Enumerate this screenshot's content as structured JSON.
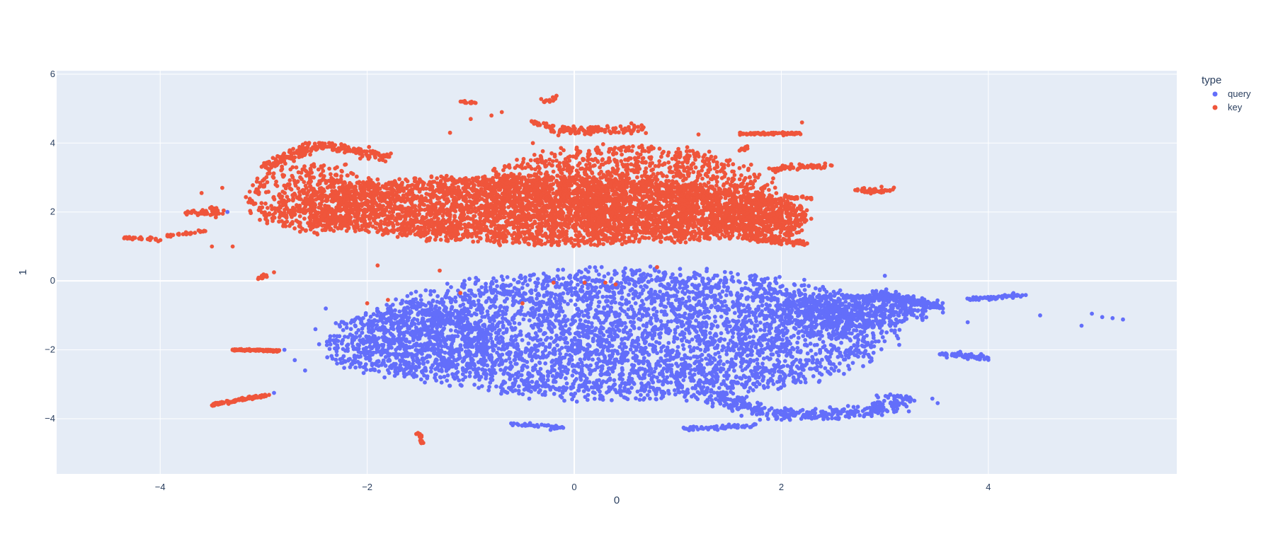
{
  "chart_data": {
    "type": "scatter",
    "title": "",
    "xlabel": "0",
    "ylabel": "1",
    "xlim": [
      -5.0,
      5.82
    ],
    "ylim": [
      -5.6,
      6.1
    ],
    "x_ticks": [
      -4,
      -2,
      0,
      2,
      4
    ],
    "x_tick_labels": [
      "−4",
      "−2",
      "0",
      "2",
      "4"
    ],
    "y_ticks": [
      -4,
      -2,
      0,
      2,
      4,
      6
    ],
    "y_tick_labels": [
      "−4",
      "−2",
      "0",
      "2",
      "4",
      "6"
    ],
    "grid": true,
    "legend": {
      "title": "type",
      "placement": "top-right",
      "entries": [
        "query",
        "key"
      ]
    },
    "series": [
      {
        "name": "query",
        "color": "#636efa",
        "clusters": [
          {
            "kind": "blob",
            "cx": 0.5,
            "cy": -1.55,
            "rx": 2.75,
            "ry": 2.0,
            "n": 4200,
            "tilt": 0.02
          },
          {
            "kind": "blob",
            "cx": -1.6,
            "cy": -1.8,
            "rx": 0.9,
            "ry": 1.1,
            "n": 600,
            "tilt": 0.0
          },
          {
            "kind": "blob",
            "cx": 2.7,
            "cy": -0.9,
            "rx": 0.8,
            "ry": 0.55,
            "n": 500,
            "tilt": 0.0
          },
          {
            "kind": "arc",
            "cx": 2.3,
            "cy": -3.2,
            "rx": 0.9,
            "ry": 0.7,
            "n": 380
          },
          {
            "kind": "line",
            "x0": 2.9,
            "y0": -0.35,
            "x1": 3.55,
            "y1": -0.75,
            "n": 160,
            "spread": 0.06
          },
          {
            "kind": "line",
            "x0": 3.8,
            "y0": -0.55,
            "x1": 4.35,
            "y1": -0.4,
            "n": 60,
            "spread": 0.03
          },
          {
            "kind": "line",
            "x0": 3.55,
            "y0": -2.1,
            "x1": 4.0,
            "y1": -2.25,
            "n": 60,
            "spread": 0.04
          },
          {
            "kind": "line",
            "x0": 1.05,
            "y0": -4.3,
            "x1": 1.75,
            "y1": -4.2,
            "n": 60,
            "spread": 0.03
          },
          {
            "kind": "line",
            "x0": -0.6,
            "y0": -4.15,
            "x1": -0.1,
            "y1": -4.28,
            "n": 40,
            "spread": 0.03
          },
          {
            "kind": "points",
            "pts": [
              [
                5.0,
                -0.95
              ],
              [
                5.2,
                -1.08
              ],
              [
                5.3,
                -1.12
              ],
              [
                5.1,
                -1.05
              ],
              [
                4.9,
                -1.3
              ],
              [
                4.5,
                -1.0
              ],
              [
                -2.9,
                -3.25
              ],
              [
                -2.6,
                -2.6
              ],
              [
                -2.8,
                -2.0
              ],
              [
                -2.7,
                -2.3
              ],
              [
                3.8,
                -1.2
              ],
              [
                4.1,
                -0.45
              ],
              [
                3.0,
                0.15
              ],
              [
                -2.5,
                -1.4
              ],
              [
                -2.4,
                -0.8
              ],
              [
                -3.35,
                2.0
              ]
            ]
          }
        ]
      },
      {
        "name": "key",
        "color": "#ef553b",
        "clusters": [
          {
            "kind": "blob",
            "cx": -0.3,
            "cy": 2.05,
            "rx": 2.65,
            "ry": 1.05,
            "n": 4000,
            "tilt": -0.05
          },
          {
            "kind": "blob",
            "cx": 0.5,
            "cy": 2.7,
            "rx": 1.5,
            "ry": 1.3,
            "n": 1400,
            "tilt": 0.0
          },
          {
            "kind": "blob",
            "cx": -2.5,
            "cy": 2.4,
            "rx": 0.7,
            "ry": 1.1,
            "n": 500,
            "tilt": 0.0
          },
          {
            "kind": "blob",
            "cx": 1.8,
            "cy": 1.8,
            "rx": 0.5,
            "ry": 0.7,
            "n": 450,
            "tilt": 0.0
          },
          {
            "kind": "line",
            "x0": -3.0,
            "y0": 3.3,
            "x1": -2.5,
            "y1": 3.95,
            "n": 120,
            "spread": 0.08
          },
          {
            "kind": "line",
            "x0": -2.5,
            "y0": 3.95,
            "x1": -1.8,
            "y1": 3.6,
            "n": 120,
            "spread": 0.07
          },
          {
            "kind": "line",
            "x0": -0.4,
            "y0": 4.6,
            "x1": -0.2,
            "y1": 4.45,
            "n": 30,
            "spread": 0.03
          },
          {
            "kind": "line",
            "x0": -0.2,
            "y0": 4.35,
            "x1": 0.65,
            "y1": 4.4,
            "n": 120,
            "spread": 0.06
          },
          {
            "kind": "line",
            "x0": 1.6,
            "y0": 4.28,
            "x1": 2.2,
            "y1": 4.28,
            "n": 80,
            "spread": 0.02
          },
          {
            "kind": "line",
            "x0": 1.9,
            "y0": 3.25,
            "x1": 2.5,
            "y1": 3.35,
            "n": 60,
            "spread": 0.04
          },
          {
            "kind": "line",
            "x0": 1.75,
            "y0": 1.2,
            "x1": 2.25,
            "y1": 1.1,
            "n": 80,
            "spread": 0.04
          },
          {
            "kind": "line",
            "x0": 2.0,
            "y0": 2.45,
            "x1": 2.3,
            "y1": 2.4,
            "n": 30,
            "spread": 0.03
          },
          {
            "kind": "line",
            "x0": 2.7,
            "y0": 2.6,
            "x1": 3.1,
            "y1": 2.65,
            "n": 40,
            "spread": 0.04
          },
          {
            "kind": "line",
            "x0": -4.35,
            "y0": 1.25,
            "x1": -4.0,
            "y1": 1.2,
            "n": 30,
            "spread": 0.02
          },
          {
            "kind": "line",
            "x0": -3.95,
            "y0": 1.3,
            "x1": -3.55,
            "y1": 1.45,
            "n": 30,
            "spread": 0.02
          },
          {
            "kind": "line",
            "x0": -3.75,
            "y0": 1.95,
            "x1": -3.4,
            "y1": 2.0,
            "n": 40,
            "spread": 0.06
          },
          {
            "kind": "line",
            "x0": -3.3,
            "y0": -2.0,
            "x1": -2.85,
            "y1": -2.03,
            "n": 90,
            "spread": 0.015
          },
          {
            "kind": "line",
            "x0": -3.5,
            "y0": -3.6,
            "x1": -2.95,
            "y1": -3.3,
            "n": 110,
            "spread": 0.02
          },
          {
            "kind": "line",
            "x0": -3.05,
            "y0": 0.05,
            "x1": -2.98,
            "y1": 0.15,
            "n": 20,
            "spread": 0.03
          },
          {
            "kind": "line",
            "x0": -1.5,
            "y0": -4.4,
            "x1": -1.47,
            "y1": -4.7,
            "n": 14,
            "spread": 0.03
          },
          {
            "kind": "line",
            "x0": -1.1,
            "y0": 5.2,
            "x1": -0.95,
            "y1": 5.15,
            "n": 14,
            "spread": 0.02
          },
          {
            "kind": "line",
            "x0": -0.3,
            "y0": 5.2,
            "x1": -0.15,
            "y1": 5.35,
            "n": 14,
            "spread": 0.03
          },
          {
            "kind": "line",
            "x0": 1.6,
            "y0": 3.8,
            "x1": 1.7,
            "y1": 3.9,
            "n": 10,
            "spread": 0.03
          },
          {
            "kind": "line",
            "x0": 2.2,
            "y0": 1.85,
            "x1": 2.25,
            "y1": 1.95,
            "n": 8,
            "spread": 0.03
          },
          {
            "kind": "points",
            "pts": [
              [
                -1.8,
                -0.55
              ],
              [
                -1.1,
                -0.35
              ],
              [
                -0.5,
                -0.65
              ],
              [
                0.1,
                -0.05
              ],
              [
                0.4,
                -0.1
              ],
              [
                -0.8,
                4.8
              ],
              [
                -0.7,
                4.9
              ],
              [
                -1.0,
                4.7
              ],
              [
                -1.2,
                4.3
              ],
              [
                -1.9,
                0.45
              ],
              [
                -3.3,
                1.0
              ],
              [
                -3.5,
                1.0
              ],
              [
                -3.6,
                2.55
              ],
              [
                -3.4,
                2.7
              ],
              [
                -0.4,
                4.0
              ],
              [
                2.2,
                4.6
              ],
              [
                1.2,
                4.25
              ],
              [
                0.8,
                0.4
              ],
              [
                -0.2,
                -0.05
              ],
              [
                -2.9,
                0.25
              ],
              [
                -2.0,
                -0.65
              ],
              [
                -1.3,
                0.3
              ],
              [
                0.3,
                -0.05
              ]
            ]
          }
        ]
      }
    ]
  }
}
